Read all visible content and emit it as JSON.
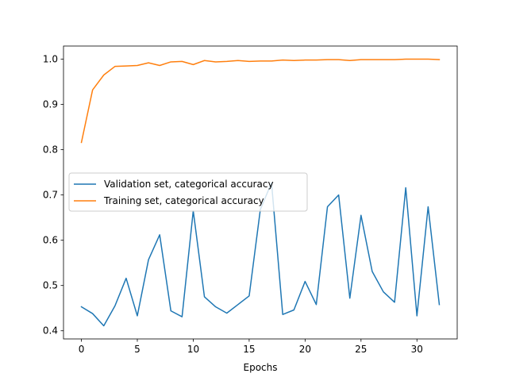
{
  "chart_data": {
    "type": "line",
    "xlabel": "Epochs",
    "ylabel": "",
    "title": "",
    "xlim": [
      -1.6,
      33.6
    ],
    "ylim": [
      0.382,
      1.029
    ],
    "xticks": [
      0,
      5,
      10,
      15,
      20,
      25,
      30
    ],
    "yticks": [
      0.4,
      0.5,
      0.6,
      0.7,
      0.8,
      0.9,
      1.0
    ],
    "ytick_labels": [
      "0.4",
      "0.5",
      "0.6",
      "0.7",
      "0.8",
      "0.9",
      "1.0"
    ],
    "grid": false,
    "legend_position": "center-left",
    "x": [
      0,
      1,
      2,
      3,
      4,
      5,
      6,
      7,
      8,
      9,
      10,
      11,
      12,
      13,
      14,
      15,
      16,
      17,
      18,
      19,
      20,
      21,
      22,
      23,
      24,
      25,
      26,
      27,
      28,
      29,
      30,
      31,
      32
    ],
    "series": [
      {
        "name": "Validation set, categorical accuracy",
        "color": "#1f77b4",
        "values": [
          0.453,
          0.438,
          0.411,
          0.455,
          0.516,
          0.433,
          0.557,
          0.612,
          0.444,
          0.431,
          0.665,
          0.475,
          0.453,
          0.439,
          0.458,
          0.477,
          0.668,
          0.727,
          0.436,
          0.446,
          0.509,
          0.458,
          0.674,
          0.7,
          0.472,
          0.655,
          0.531,
          0.486,
          0.463,
          0.716,
          0.433,
          0.674,
          0.458
        ]
      },
      {
        "name": "Training set, categorical accuracy",
        "color": "#ff7f0e",
        "values": [
          0.816,
          0.932,
          0.965,
          0.984,
          0.985,
          0.986,
          0.992,
          0.986,
          0.994,
          0.995,
          0.988,
          0.997,
          0.994,
          0.995,
          0.997,
          0.995,
          0.996,
          0.996,
          0.998,
          0.997,
          0.998,
          0.998,
          0.999,
          0.999,
          0.997,
          0.999,
          0.999,
          0.999,
          0.999,
          1.0,
          1.0,
          1.0,
          0.999
        ]
      }
    ]
  }
}
